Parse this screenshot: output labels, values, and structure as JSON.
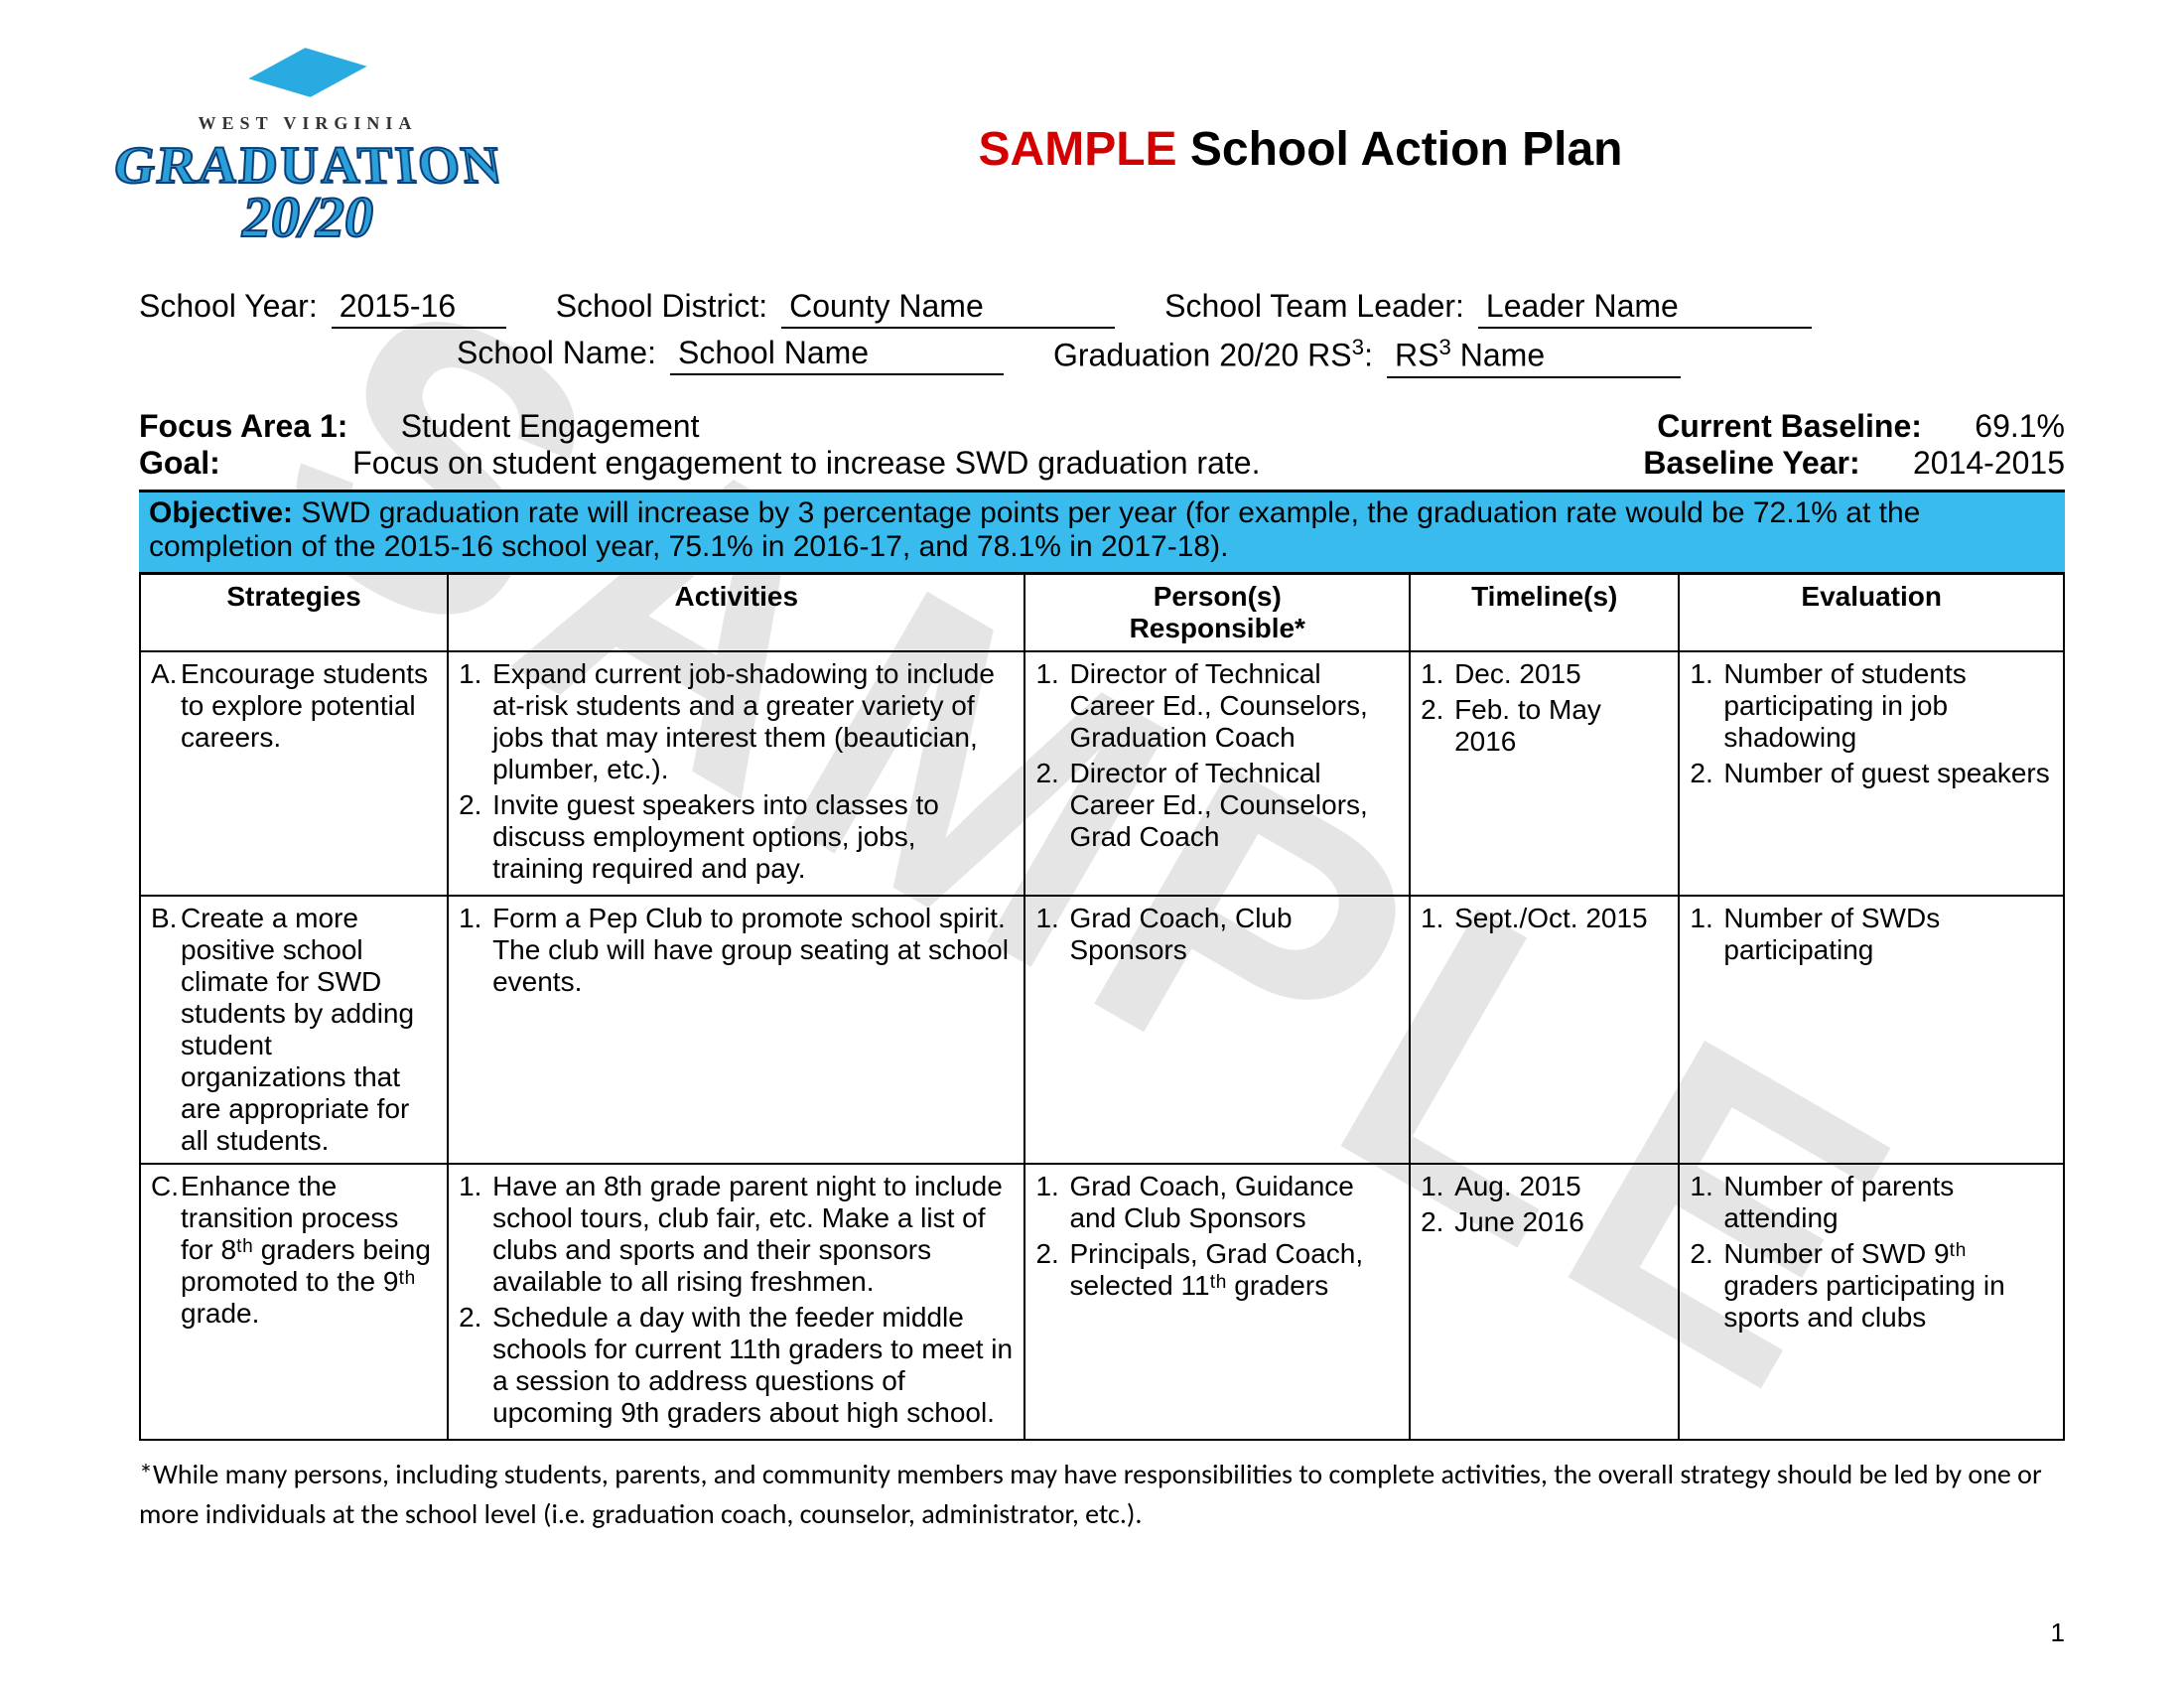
{
  "title": {
    "sample": "SAMPLE",
    "rest": " School Action Plan"
  },
  "colors": {
    "accent_red": "#d40000",
    "objective_bg": "#39bced",
    "logo_blue": "#29abe2",
    "logo_stroke": "#0b3c78"
  },
  "watermark": "SAMPLE",
  "logo": {
    "top": "WEST VIRGINIA",
    "main": "GRADUATION",
    "year": "20/20"
  },
  "meta": {
    "school_year_label": "School Year:",
    "school_year": "2015-16",
    "district_label": "School District:",
    "district": "County Name",
    "team_leader_label": "School Team Leader:",
    "team_leader": "Leader Name",
    "school_name_label": "School Name:",
    "school_name": "School Name",
    "rs_label": "Graduation 20/20 RS³:",
    "rs": "RS³ Name"
  },
  "focus": {
    "label": "Focus Area 1:",
    "value": "Student Engagement",
    "baseline_label": "Current Baseline:",
    "baseline_value": "69.1%",
    "goal_label": "Goal:",
    "goal_value": "Focus on student engagement to increase SWD graduation rate.",
    "year_label": "Baseline Year:",
    "year_value": "2014-2015"
  },
  "objective": {
    "label": "Objective:",
    "text": " SWD graduation rate will increase by 3 percentage points per year (for example, the graduation rate would be 72.1% at the completion of the 2015-16 school year, 75.1% in 2016-17, and 78.1% in 2017-18)."
  },
  "columns": [
    "Strategies",
    "Activities",
    "Person(s) Responsible*",
    "Timeline(s)",
    "Evaluation"
  ],
  "rows": [
    {
      "letter": "A.",
      "strategy": "Encourage students to explore potential careers.",
      "activities": [
        "Expand current job-shadowing to include at-risk students and a greater variety of jobs that may interest them (beautician, plumber, etc.).",
        "Invite guest speakers into classes to discuss employment options, jobs, training required and pay."
      ],
      "persons": [
        "Director of Technical Career Ed., Counselors, Graduation Coach",
        "Director of Technical Career Ed., Counselors, Grad Coach"
      ],
      "timelines": [
        "Dec. 2015",
        "Feb. to May 2016"
      ],
      "evaluation": [
        "Number of students participating in job shadowing",
        "Number of guest speakers"
      ]
    },
    {
      "letter": "B.",
      "strategy": "Create a more positive school climate for SWD students by adding student organizations that are appropriate for all students.",
      "activities": [
        "Form a Pep Club to promote school spirit. The club will have group seating at school events."
      ],
      "persons": [
        "Grad Coach, Club Sponsors"
      ],
      "timelines": [
        "Sept./Oct. 2015"
      ],
      "evaluation": [
        "Number of SWDs participating"
      ]
    },
    {
      "letter": "C.",
      "strategy": "Enhance the transition process for 8ᵗʰ graders being promoted to the 9ᵗʰ grade.",
      "activities": [
        "Have an 8th grade parent night to include school tours, club fair, etc. Make a list of clubs and sports and their sponsors available to all rising freshmen.",
        "Schedule a day with the feeder middle schools for current 11th graders to meet in a session to address questions of upcoming 9th graders about high school."
      ],
      "persons": [
        "Grad Coach, Guidance and Club Sponsors",
        "Principals, Grad Coach, selected 11ᵗʰ graders"
      ],
      "timelines": [
        "Aug. 2015",
        "June 2016"
      ],
      "evaluation": [
        "Number of parents attending",
        "Number of SWD 9ᵗʰ graders participating in sports and clubs"
      ]
    }
  ],
  "footnote": "*While many persons, including students, parents, and community members may have responsibilities to complete activities, the overall strategy should be led by one or more individuals at the school level (i.e. graduation coach, counselor, administrator, etc.).",
  "page_number": "1"
}
